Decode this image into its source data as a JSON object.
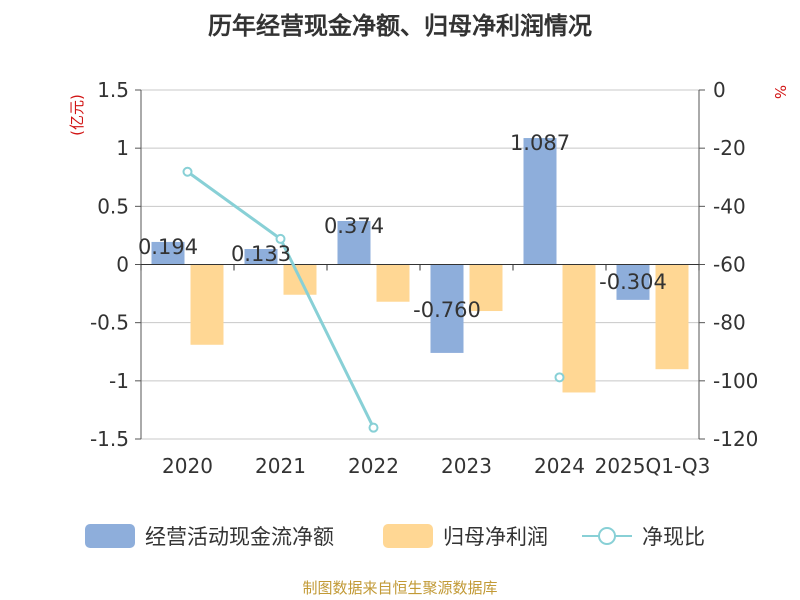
{
  "chart_data": {
    "type": "bar",
    "title": "历年经营现金净额、归母净利润情况",
    "categories": [
      "2020",
      "2021",
      "2022",
      "2023",
      "2024",
      "2025Q1-Q3"
    ],
    "ylabel_left": "(亿元)",
    "ylabel_right": "%",
    "ylim_left": [
      -1.5,
      1.5
    ],
    "yticks_left": [
      "1.5",
      "1",
      "0.5",
      "0",
      "-0.5",
      "-1",
      "-1.5"
    ],
    "ylim_right": [
      -120,
      0
    ],
    "yticks_right": [
      "0",
      "-20",
      "-40",
      "-60",
      "-80",
      "-100",
      "-120"
    ],
    "series": [
      {
        "name": "经营活动现金流净额",
        "kind": "bar",
        "color": "#8eaedb",
        "values": [
          0.194,
          0.133,
          0.374,
          -0.76,
          1.087,
          -0.304
        ],
        "labels": [
          "0.194",
          "0.133",
          "0.374",
          "-0.760",
          "1.087",
          "-0.304"
        ]
      },
      {
        "name": "归母净利润",
        "kind": "bar",
        "color": "#ffd794",
        "values": [
          -0.69,
          -0.26,
          -0.32,
          -0.4,
          -1.1,
          -0.9
        ]
      },
      {
        "name": "净现比",
        "kind": "line",
        "color": "#88d0d6",
        "values": [
          -28.1,
          -51.2,
          -116.1,
          null,
          -98.8,
          null
        ]
      }
    ],
    "legend_position": "bottom",
    "source": "制图数据来自恒生聚源数据库"
  }
}
